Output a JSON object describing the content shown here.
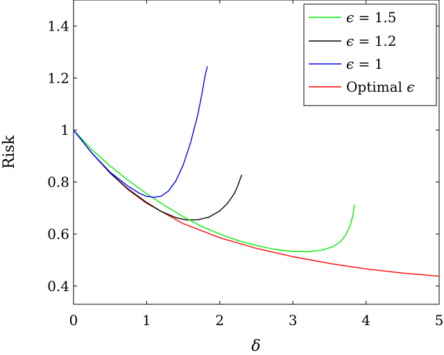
{
  "chart_data": {
    "type": "line",
    "xlabel": "δ",
    "ylabel": "Risk",
    "xlim": [
      0,
      5
    ],
    "ylim": [
      0.33,
      1.5
    ],
    "xticks": [
      "0",
      "1",
      "2",
      "3",
      "4",
      "5"
    ],
    "yticks": [
      "0.4",
      "0.6",
      "0.8",
      "1",
      "1.2",
      "1.4"
    ],
    "grid": false,
    "legend_position": "top-right",
    "series": [
      {
        "name": "ϵ = 1.5",
        "legend_symbol": "ϵ",
        "legend_rest": " = 1.5",
        "color": "#00ee00",
        "x": [
          0,
          0.25,
          0.5,
          0.75,
          1.0,
          1.25,
          1.5,
          1.75,
          2.0,
          2.25,
          2.5,
          2.75,
          3.0,
          3.2,
          3.4,
          3.55,
          3.65,
          3.72,
          3.78,
          3.82,
          3.84
        ],
        "y": [
          1.0,
          0.925,
          0.862,
          0.806,
          0.755,
          0.709,
          0.667,
          0.63,
          0.6,
          0.575,
          0.556,
          0.541,
          0.533,
          0.532,
          0.538,
          0.552,
          0.571,
          0.595,
          0.63,
          0.67,
          0.713
        ]
      },
      {
        "name": "ϵ = 1.2",
        "legend_symbol": "ϵ",
        "legend_rest": " = 1.2",
        "color": "#000000",
        "x": [
          0,
          0.25,
          0.5,
          0.75,
          1.0,
          1.2,
          1.4,
          1.55,
          1.7,
          1.85,
          2.0,
          2.1,
          2.2,
          2.25,
          2.3
        ],
        "y": [
          1.0,
          0.912,
          0.835,
          0.772,
          0.721,
          0.687,
          0.663,
          0.654,
          0.655,
          0.665,
          0.689,
          0.716,
          0.756,
          0.788,
          0.828
        ]
      },
      {
        "name": "ϵ = 1",
        "legend_symbol": "ϵ",
        "legend_rest": " = 1",
        "color": "#0000ff",
        "x": [
          0,
          0.25,
          0.5,
          0.75,
          0.9,
          1.0,
          1.1,
          1.2,
          1.3,
          1.4,
          1.5,
          1.6,
          1.7,
          1.75,
          1.8,
          1.83
        ],
        "y": [
          1.0,
          0.912,
          0.838,
          0.783,
          0.757,
          0.745,
          0.741,
          0.746,
          0.766,
          0.805,
          0.866,
          0.95,
          1.06,
          1.13,
          1.21,
          1.245
        ]
      },
      {
        "name": "Optimal ϵ",
        "legend_symbol": "ϵ",
        "legend_rest_before": "Optimal ",
        "legend_rest": "",
        "color": "#ff0000",
        "x": [
          0,
          0.25,
          0.5,
          0.75,
          1.0,
          1.5,
          2.0,
          2.5,
          3.0,
          3.5,
          4.0,
          4.5,
          5.0
        ],
        "y": [
          1.0,
          0.912,
          0.835,
          0.77,
          0.718,
          0.64,
          0.586,
          0.545,
          0.513,
          0.487,
          0.466,
          0.45,
          0.438
        ]
      }
    ]
  }
}
